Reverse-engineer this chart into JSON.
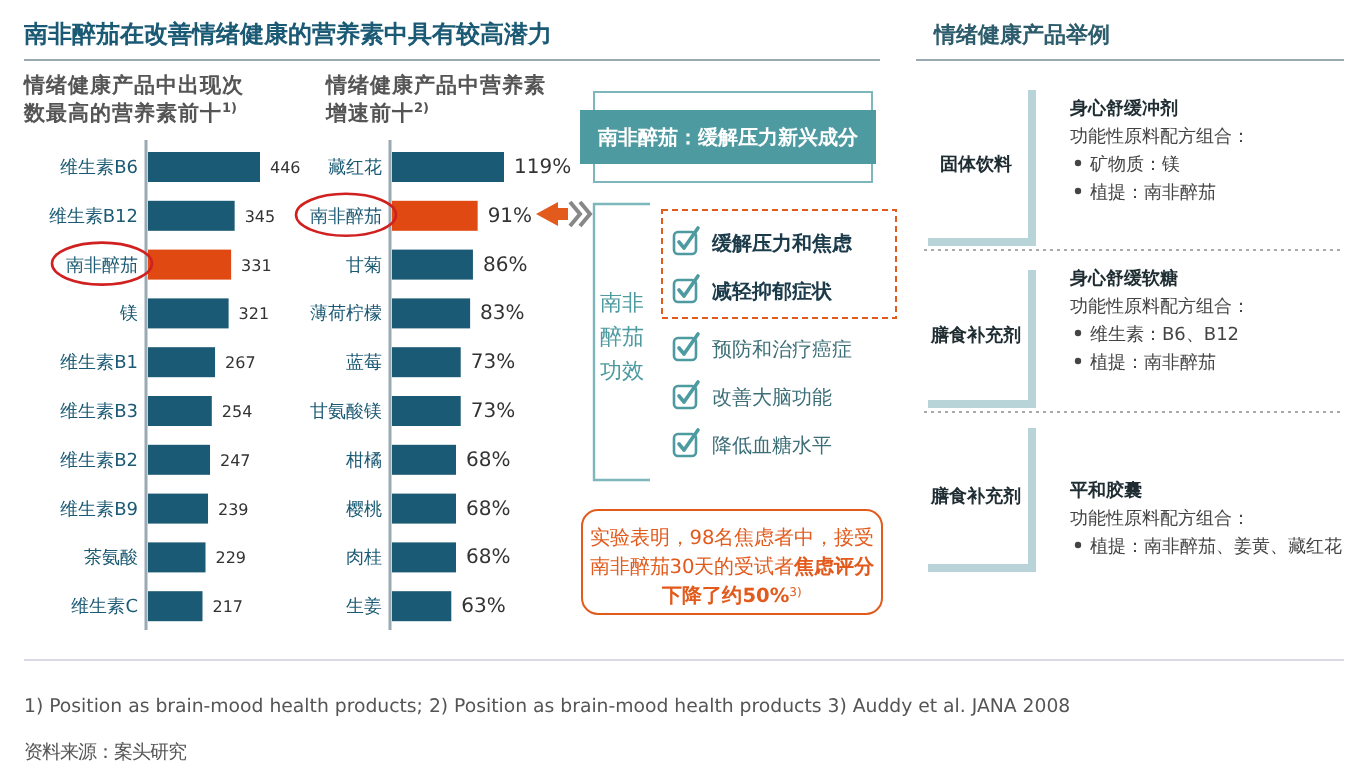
{
  "chart_data": [
    {
      "type": "bar",
      "orientation": "horizontal",
      "title": "情绪健康产品中出现次数最高的营养素前十$^{1)}$",
      "categories": [
        "维生素B6",
        "维生素B12",
        "南非醉茄",
        "镁",
        "维生素B1",
        "维生素B3",
        "维生素B2",
        "维生素B9",
        "茶氨酸",
        "维生素C"
      ],
      "values": [
        446,
        345,
        331,
        321,
        267,
        254,
        247,
        239,
        229,
        217
      ],
      "colors": [
        "#1b5a74",
        "#1b5a74",
        "#e04a12",
        "#1b5a74",
        "#1b5a74",
        "#1b5a74",
        "#1b5a74",
        "#1b5a74",
        "#1b5a74",
        "#1b5a74"
      ],
      "data_labels": true
    },
    {
      "type": "bar",
      "orientation": "horizontal",
      "title": "情绪健康产品中营养素增速前十$^{2)}$",
      "categories": [
        "藏红花",
        "南非醉茄",
        "甘菊",
        "薄荷柠檬",
        "蓝莓",
        "甘氨酸镁",
        "柑橘",
        "樱桃",
        "肉桂",
        "生姜"
      ],
      "values": [
        119,
        91,
        86,
        83,
        73,
        73,
        68,
        68,
        68,
        63
      ],
      "value_labels": [
        "119%",
        "91%",
        "86%",
        "83%",
        "73%",
        "73%",
        "68%",
        "68%",
        "68%",
        "63%"
      ],
      "colors": [
        "#1b5a74",
        "#e04a12",
        "#1b5a74",
        "#1b5a74",
        "#1b5a74",
        "#1b5a74",
        "#1b5a74",
        "#1b5a74",
        "#1b5a74",
        "#1b5a74"
      ]
    },
    {
      "type": "other",
      "title": "南非醉茄在改善情绪健康的营养素中具有较高潜力",
      "annotations": [
        "南非醉茄：缓解压力新兴成分",
        "南非醉茄功效",
        "缓解压力和焦虑",
        "减轻抑郁症状",
        "预防和治疗癌症",
        "改善大脑功能",
        "降低血糖水平",
        "实验表明，98名焦虑者中，接受南非醉茄30天的受试者",
        "焦虑评分下降了约50%$^{3)}$",
        "情绪健康产品举例",
        "固体饮料",
        "身心舒缓冲剂",
        "功能性原料配方组合：",
        "矿物质：镁",
        "植提：南非醉茄",
        "膳食补充剂",
        "身心舒缓软糖",
        "功能性原料配方组合：",
        "维生素：B6、B12",
        "植提：南非醉茄",
        "膳食补充剂",
        "平和胶囊",
        "功能性原料配方组合：",
        "植提：南非醉茄、姜黄、藏红花",
        "1) Position as brain-mood health products; 2) Position as brain-mood health products 3) Auddy et al. JANA 2008",
        "资料来源：案头研究"
      ]
    }
  ]
}
